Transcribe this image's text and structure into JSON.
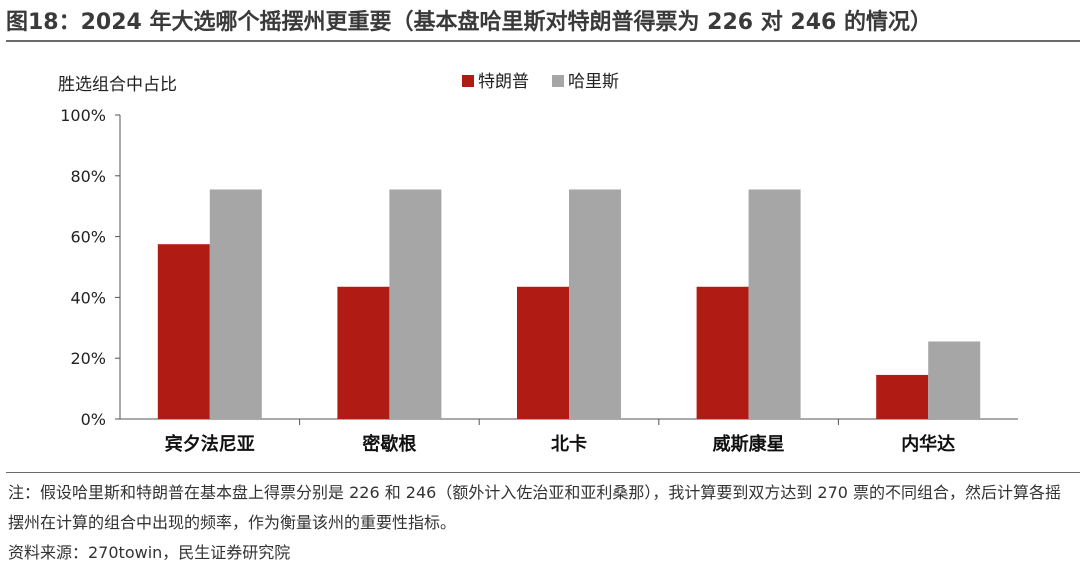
{
  "figure": {
    "title": "图18：2024 年大选哪个摇摆州更重要（基本盘哈里斯对特朗普得票为 226 对 246 的情况）",
    "note": "注：假设哈里斯和特朗普在基本盘上得票分别是 226 和 246（额外计入佐治亚和亚利桑那），我计算要到双方达到 270 票的不同组合，然后计算各摇摆州在计算的组合中出现的频率，作为衡量该州的重要性指标。",
    "source": "资料来源：270towin，民生证券研究院"
  },
  "chart_data": {
    "type": "bar",
    "ylabel": "胜选组合中占比",
    "categories": [
      "宾夕法尼亚",
      "密歇根",
      "北卡",
      "威斯康星",
      "内华达"
    ],
    "series": [
      {
        "name": "特朗普",
        "color": "#b01c14",
        "values": [
          57.5,
          43.5,
          43.5,
          43.5,
          14.5
        ]
      },
      {
        "name": "哈里斯",
        "color": "#a6a6a6",
        "values": [
          75.5,
          75.5,
          75.5,
          75.5,
          25.5
        ]
      }
    ],
    "ylim": [
      0,
      100
    ],
    "yticks": [
      "0%",
      "20%",
      "40%",
      "60%",
      "80%",
      "100%"
    ],
    "legend_position": "top-center",
    "grid": false
  }
}
